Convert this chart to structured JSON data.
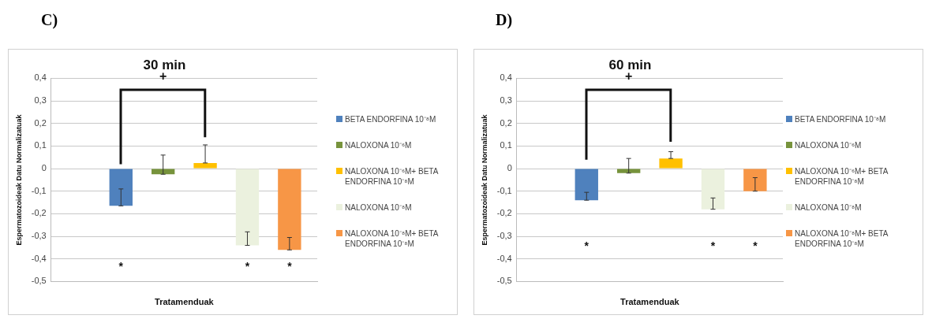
{
  "chart_data": [
    {
      "type": "bar",
      "title": "30 min",
      "xlabel": "Tratamenduak",
      "ylabel": "Espermatozoideak Datu Normalizatuak",
      "categories": [
        null
      ],
      "series": [
        {
          "color": "#7f7f7f",
          "values": [
            0
          ]
        },
        {
          "name": "BETA ENDORFINA 10⁻⁸M",
          "color": "#4f81bd",
          "values": [
            -0.165
          ],
          "errors": [
            [
              -0.165,
              -0.09
            ]
          ]
        },
        {
          "name": "NALOXONA 10⁻⁶M",
          "color": "#77933c",
          "values": [
            -0.025
          ],
          "errors": [
            [
              -0.025,
              0.06
            ]
          ]
        },
        {
          "name": "NALOXONA 10⁻⁶M+ BETA ENDORFINA 10⁻⁸M",
          "color": "#ffc000",
          "values": [
            0.025
          ],
          "errors": [
            [
              0.025,
              0.105
            ]
          ]
        },
        {
          "name": "NALOXONA 10⁻⁸M",
          "color": "#ebf1de",
          "values": [
            -0.34
          ],
          "errors": [
            [
              -0.34,
              -0.28
            ]
          ]
        },
        {
          "name": "NALOXONA 10⁻⁸M+ BETA ENDORFINA 10⁻⁸M",
          "color": "#f79646",
          "values": [
            -0.36
          ],
          "errors": [
            [
              -0.36,
              -0.305
            ]
          ]
        }
      ],
      "ylim": [
        -0.5,
        0.4
      ],
      "yticks": [
        {
          "value": -0.5,
          "label": "-0,5"
        },
        {
          "value": -0.4,
          "label": "-0,4"
        },
        {
          "value": -0.3,
          "label": "-0,3"
        },
        {
          "value": -0.2,
          "label": "-0,2"
        },
        {
          "value": -0.1,
          "label": "-0,1"
        },
        0,
        {
          "value": 0.1,
          "label": "0,1"
        },
        {
          "value": 0.2,
          "label": "0,2"
        },
        {
          "value": 0.3,
          "label": "0,3"
        },
        {
          "value": 0.4,
          "label": "0,4"
        }
      ],
      "grid": "y",
      "legend": "right",
      "annotations": [
        "C)",
        "+",
        "*",
        "*",
        "*"
      ]
    },
    {
      "type": "bar",
      "title": "60 min",
      "xlabel": "Tratamenduak",
      "ylabel": "Espermatozoideak Datu Normalizatuak",
      "categories": [
        null
      ],
      "series": [
        {
          "color": "#7f7f7f",
          "values": [
            0
          ]
        },
        {
          "name": "BETA ENDORFINA 10⁻⁸M",
          "color": "#4f81bd",
          "values": [
            -0.14
          ],
          "errors": [
            [
              -0.14,
              -0.105
            ]
          ]
        },
        {
          "name": "NALOXONA 10⁻⁶M",
          "color": "#77933c",
          "values": [
            -0.02
          ],
          "errors": [
            [
              -0.02,
              0.045
            ]
          ]
        },
        {
          "name": "NALOXONA 10⁻⁶M+ BETA ENDORFINA 10⁻⁸M",
          "color": "#ffc000",
          "values": [
            0.045
          ],
          "errors": [
            [
              0.045,
              0.075
            ]
          ]
        },
        {
          "name": "NALOXONA 10⁻⁸M",
          "color": "#ebf1de",
          "values": [
            -0.18
          ],
          "errors": [
            [
              -0.18,
              -0.13
            ]
          ]
        },
        {
          "name": "NALOXONA 10⁻⁸M+ BETA ENDORFINA 10⁻⁸M",
          "color": "#f79646",
          "values": [
            -0.1
          ],
          "errors": [
            [
              -0.1,
              -0.04
            ]
          ]
        }
      ],
      "ylim": [
        -0.5,
        0.4
      ],
      "yticks": [
        {
          "value": -0.5,
          "label": "-0,5"
        },
        {
          "value": -0.4,
          "label": "-0,4"
        },
        {
          "value": -0.3,
          "label": "-0,3"
        },
        {
          "value": -0.2,
          "label": "-0,2"
        },
        {
          "value": -0.1,
          "label": "-0,1"
        },
        0,
        {
          "value": 0.1,
          "label": "0,1"
        },
        {
          "value": 0.2,
          "label": "0,2"
        },
        {
          "value": 0.3,
          "label": "0,3"
        },
        {
          "value": 0.4,
          "label": "0,4"
        }
      ],
      "grid": "y",
      "legend": "right",
      "annotations": [
        "D)",
        "+",
        "*",
        "*",
        "*"
      ]
    }
  ]
}
